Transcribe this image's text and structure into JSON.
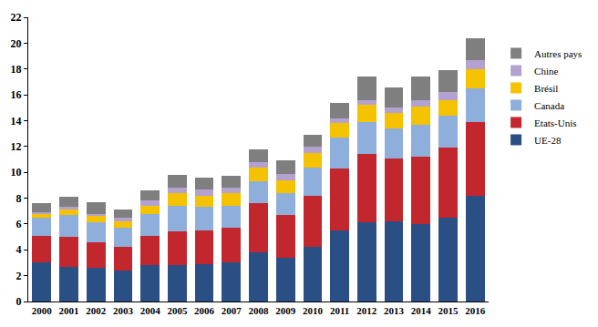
{
  "chart_data": {
    "type": "bar",
    "stacked": true,
    "categories": [
      "2000",
      "2001",
      "2002",
      "2003",
      "2004",
      "2005",
      "2006",
      "2007",
      "2008",
      "2009",
      "2010",
      "2011",
      "2012",
      "2013",
      "2014",
      "2015",
      "2016"
    ],
    "series": [
      {
        "name": "UE-28",
        "color": "#2a4f85",
        "values": [
          3.0,
          2.7,
          2.6,
          2.4,
          2.8,
          2.8,
          2.9,
          3.0,
          3.8,
          3.4,
          4.2,
          5.5,
          6.1,
          6.2,
          6.0,
          6.5,
          8.2
        ]
      },
      {
        "name": "Etats-Unis",
        "color": "#c1272d",
        "values": [
          2.1,
          2.3,
          2.0,
          1.8,
          2.3,
          2.6,
          2.6,
          2.7,
          3.8,
          3.3,
          4.0,
          4.8,
          5.3,
          4.9,
          5.2,
          5.4,
          5.7
        ]
      },
      {
        "name": "Canada",
        "color": "#8eaedb",
        "values": [
          1.4,
          1.7,
          1.5,
          1.5,
          1.7,
          2.0,
          1.8,
          1.7,
          1.7,
          1.7,
          2.2,
          2.4,
          2.5,
          2.3,
          2.5,
          2.5,
          2.6
        ]
      },
      {
        "name": "Brésil",
        "color": "#f5c200",
        "values": [
          0.3,
          0.4,
          0.5,
          0.5,
          0.6,
          1.0,
          0.9,
          1.0,
          1.1,
          1.0,
          1.1,
          1.1,
          1.3,
          1.2,
          1.4,
          1.2,
          1.5
        ]
      },
      {
        "name": "Chine",
        "color": "#b3a2d0",
        "values": [
          0.1,
          0.2,
          0.2,
          0.3,
          0.4,
          0.4,
          0.5,
          0.4,
          0.4,
          0.5,
          0.5,
          0.4,
          0.4,
          0.4,
          0.5,
          0.6,
          0.7
        ]
      },
      {
        "name": "Autres pays",
        "color": "#7f7f7f",
        "values": [
          0.7,
          0.8,
          0.9,
          0.6,
          0.8,
          1.0,
          0.9,
          0.9,
          1.0,
          1.0,
          0.9,
          1.2,
          1.8,
          1.6,
          1.8,
          1.7,
          1.7
        ]
      }
    ],
    "ylim": [
      0,
      22
    ],
    "yticks": [
      0,
      2,
      4,
      6,
      8,
      10,
      12,
      14,
      16,
      18,
      20,
      22
    ],
    "grid": false,
    "legend": "right"
  }
}
